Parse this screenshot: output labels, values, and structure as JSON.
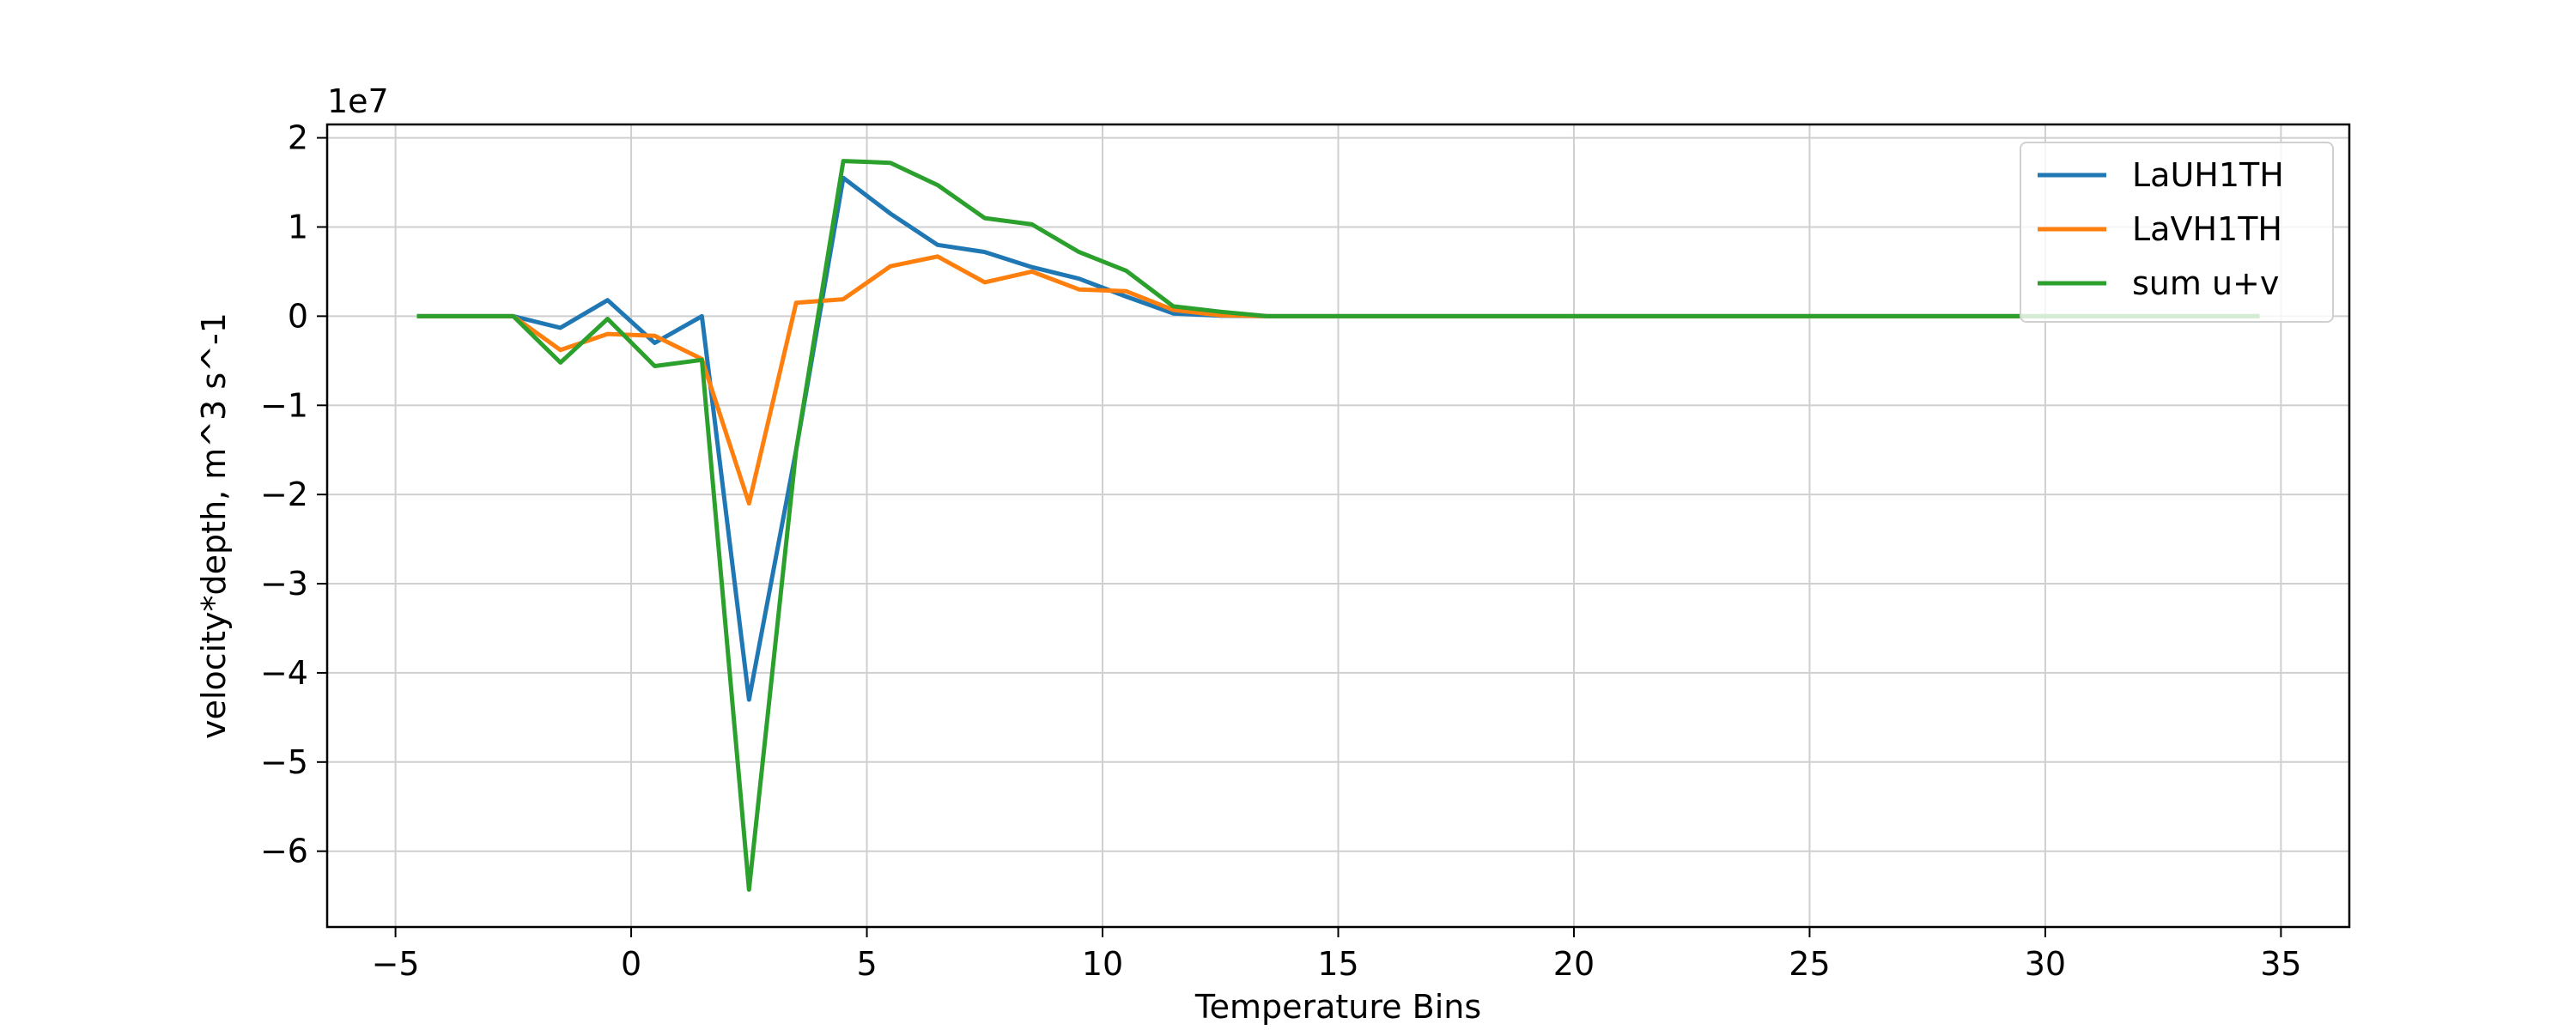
{
  "chart_data": {
    "type": "line",
    "title": "",
    "xlabel": "Temperature Bins",
    "ylabel": "velocity*depth, m^3 s^-1",
    "y_offset_label": "1e7",
    "y_scale_factor": 10000000,
    "xlim": [
      -6.45,
      36.45
    ],
    "ylim": [
      -68500000,
      21500000
    ],
    "x_ticks": [
      -5,
      0,
      5,
      10,
      15,
      20,
      25,
      30,
      35
    ],
    "y_ticks": [
      -6,
      -5,
      -4,
      -3,
      -2,
      -1,
      0,
      1,
      2
    ],
    "grid": true,
    "legend_position": "top-right",
    "x": [
      -4.5,
      -3.5,
      -2.5,
      -1.5,
      -0.5,
      0.5,
      1.5,
      2.5,
      3.5,
      4.5,
      5.5,
      6.5,
      7.5,
      8.5,
      9.5,
      10.5,
      11.5,
      12.5,
      13.5,
      14.5,
      15.5,
      16.5,
      17.5,
      18.5,
      19.5,
      20.5,
      21.5,
      22.5,
      23.5,
      24.5,
      25.5,
      26.5,
      27.5,
      28.5,
      29.5,
      30.5,
      31.5,
      32.5,
      33.5,
      34.5
    ],
    "series": [
      {
        "name": "LaUH1TH",
        "color": "#1f77b4",
        "values": [
          0,
          0,
          0,
          -1300000,
          1800000,
          -3000000,
          0,
          -43000000,
          -15000000,
          15500000,
          11500000,
          8000000,
          7200000,
          5500000,
          4200000,
          2200000,
          300000,
          50000,
          0,
          0,
          0,
          0,
          0,
          0,
          0,
          0,
          0,
          0,
          0,
          0,
          0,
          0,
          0,
          0,
          0,
          0,
          0,
          0,
          0,
          0
        ]
      },
      {
        "name": "LaVH1TH",
        "color": "#ff7f0e",
        "values": [
          0,
          0,
          0,
          -3800000,
          -2000000,
          -2200000,
          -4800000,
          -21000000,
          1500000,
          1900000,
          5600000,
          6700000,
          3800000,
          5000000,
          3000000,
          2800000,
          700000,
          100000,
          0,
          0,
          0,
          0,
          0,
          0,
          0,
          0,
          0,
          0,
          0,
          0,
          0,
          0,
          0,
          0,
          0,
          0,
          0,
          0,
          0,
          0
        ]
      },
      {
        "name": "sum u+v",
        "color": "#2ca02c",
        "values": [
          0,
          0,
          0,
          -5200000,
          -300000,
          -5600000,
          -4900000,
          -64300000,
          -15000000,
          17400000,
          17200000,
          14700000,
          11000000,
          10300000,
          7200000,
          5100000,
          1100000,
          500000,
          0,
          0,
          0,
          0,
          0,
          0,
          0,
          0,
          0,
          0,
          0,
          0,
          0,
          0,
          0,
          0,
          0,
          0,
          0,
          0,
          0,
          0
        ]
      }
    ]
  }
}
